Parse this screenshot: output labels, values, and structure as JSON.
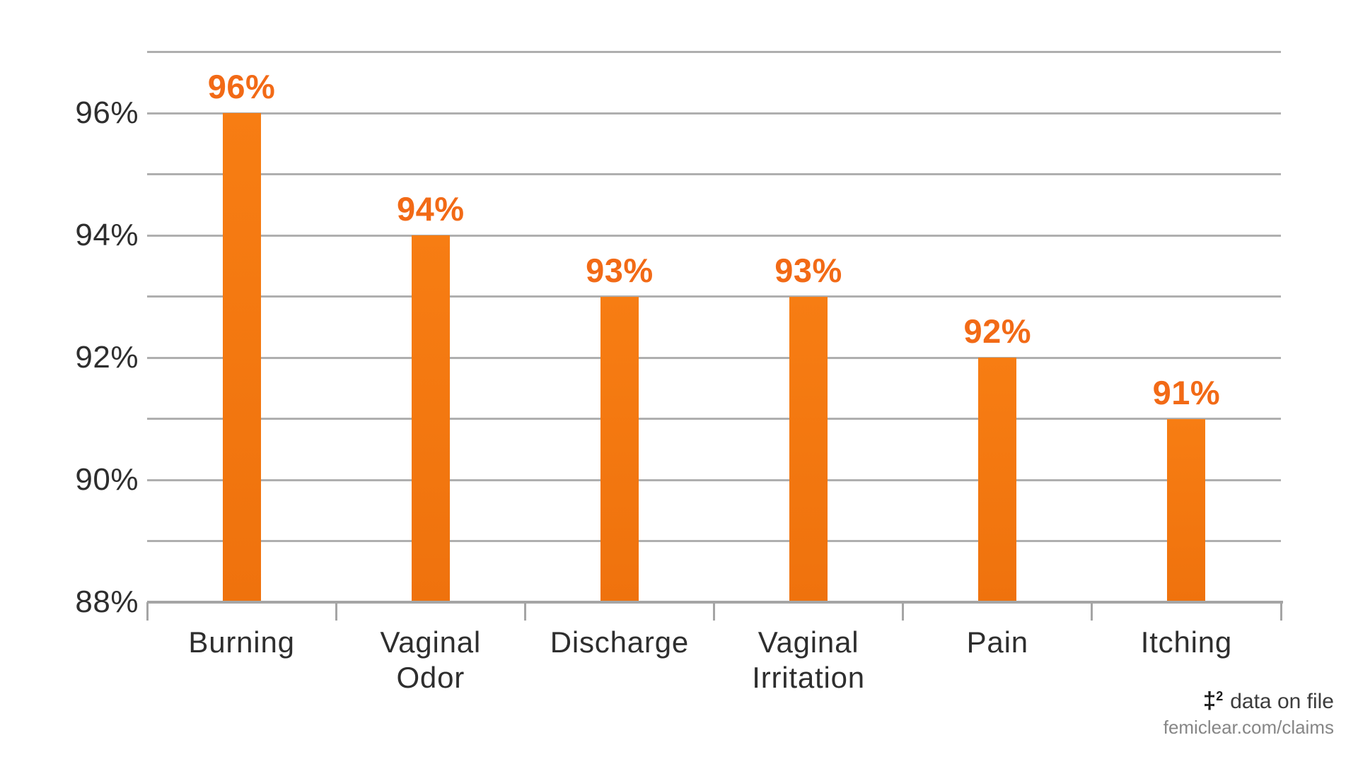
{
  "page": {
    "background": "#FFFFFF"
  },
  "chart_data": {
    "type": "bar",
    "title": "",
    "xlabel": "",
    "ylabel": "",
    "categories": [
      "Burning",
      "Vaginal\nOdor",
      "Discharge",
      "Vaginal\nIrritation",
      "Pain",
      "Itching"
    ],
    "values": [
      96,
      94,
      93,
      93,
      92,
      91
    ],
    "value_labels": [
      "96%",
      "94%",
      "93%",
      "93%",
      "92%",
      "91%"
    ],
    "ylim": [
      88,
      97
    ],
    "ytick_labels": [
      "96%",
      "94%",
      "92%",
      "90%",
      "88%"
    ],
    "ytick_values": [
      96,
      94,
      92,
      90,
      88
    ],
    "gridlines": "horizontal, every 1% from 89% to 97%",
    "legend": false,
    "bar_color": "#F77D13",
    "bar_color_bottom": "#EF720D",
    "value_label_color": "#F26A16",
    "axis_text_color": "#2E2E2E",
    "gridline_color": "#AFAFAF",
    "axis_line_color": "#A5A5A5"
  },
  "footer": {
    "note_symbol": "‡",
    "note_sup": "2",
    "note_text": "data on file",
    "url": "femiclear.com/claims"
  }
}
